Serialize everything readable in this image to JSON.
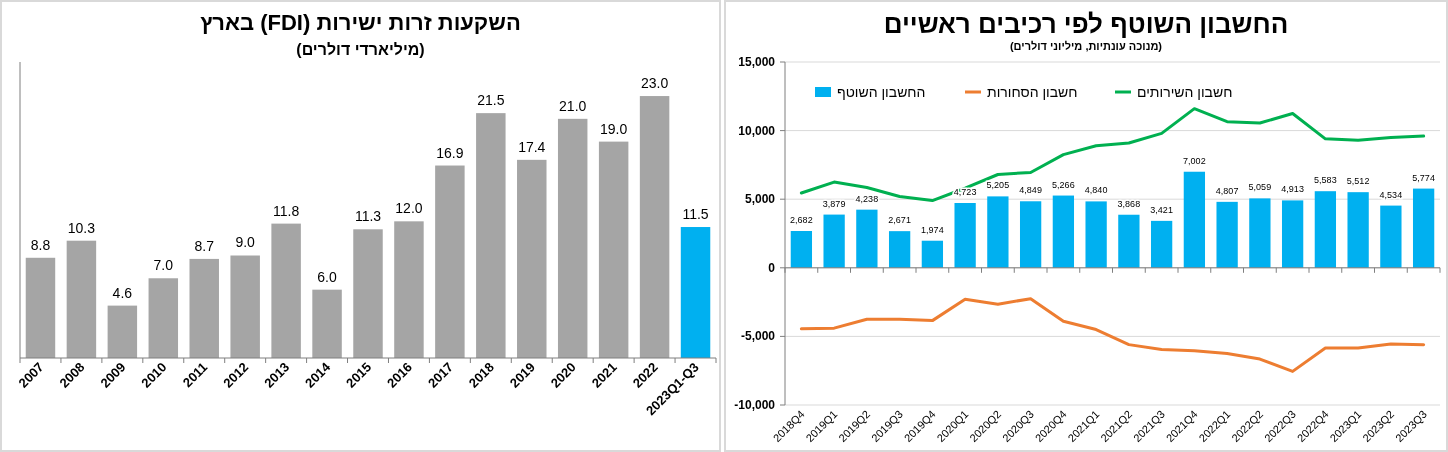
{
  "chart_data": [
    {
      "type": "bar",
      "title": "השקעות זרות ישירות (FDI) בארץ",
      "subtitle": "(מיליארדי דולרים)",
      "categories": [
        "2007",
        "2008",
        "2009",
        "2010",
        "2011",
        "2012",
        "2013",
        "2014",
        "2015",
        "2016",
        "2017",
        "2018",
        "2019",
        "2020",
        "2021",
        "2022",
        "2023Q1-Q3"
      ],
      "values": [
        8.8,
        10.3,
        4.6,
        7.0,
        8.7,
        9.0,
        11.8,
        6.0,
        11.3,
        12.0,
        16.9,
        21.5,
        17.4,
        21.0,
        19.0,
        23.0,
        11.5
      ],
      "value_labels": [
        "8.8",
        "10.3",
        "4.6",
        "7.0",
        "8.7",
        "9.0",
        "11.8",
        "6.0",
        "11.3",
        "12.0",
        "16.9",
        "21.5",
        "17.4",
        "21.0",
        "19.0",
        "23.0",
        "11.5"
      ],
      "colors": [
        "#a5a5a5",
        "#a5a5a5",
        "#a5a5a5",
        "#a5a5a5",
        "#a5a5a5",
        "#a5a5a5",
        "#a5a5a5",
        "#a5a5a5",
        "#a5a5a5",
        "#a5a5a5",
        "#a5a5a5",
        "#a5a5a5",
        "#a5a5a5",
        "#a5a5a5",
        "#a5a5a5",
        "#a5a5a5",
        "#00b0f0"
      ],
      "legend": false
    },
    {
      "type": "bar",
      "title": "החשבון השוטף לפי רכיבים ראשיים",
      "subtitle": "(מנוכה עונתיות, מיליוני דולרים)",
      "categories": [
        "2018Q4",
        "2019Q1",
        "2019Q2",
        "2019Q3",
        "2019Q4",
        "2020Q1",
        "2020Q2",
        "2020Q3",
        "2020Q4",
        "2021Q1",
        "2021Q2",
        "2021Q3",
        "2021Q4",
        "2022Q1",
        "2022Q2",
        "2022Q3",
        "2022Q4",
        "2023Q1",
        "2023Q2",
        "2023Q3"
      ],
      "series": [
        {
          "name": "החשבון השוטף",
          "color": "#00b0f0",
          "values": [
            2682,
            3879,
            4238,
            2671,
            1974,
            4723,
            5205,
            4849,
            5266,
            4840,
            3868,
            3421,
            7002,
            4807,
            5059,
            4913,
            5583,
            5512,
            4534,
            5774
          ],
          "value_labels": [
            "2,682",
            "3,879",
            "4,238",
            "2,671",
            "1,974",
            "4,723",
            "5,205",
            "4,849",
            "5,266",
            "4,840",
            "3,868",
            "3,421",
            "7,002",
            "4,807",
            "5,059",
            "4,913",
            "5,583",
            "5,512",
            "4,534",
            "5,774"
          ]
        },
        {
          "name": "חשבון הסחורות",
          "type": "line",
          "color": "#ed7d31",
          "values": [
            -4450,
            -4400,
            -3750,
            -3750,
            -3850,
            -2300,
            -2650,
            -2250,
            -3900,
            -4500,
            -5600,
            -5950,
            -6050,
            -6250,
            -6650,
            -7550,
            -5850,
            -5850,
            -5550,
            -5600
          ]
        },
        {
          "name": "חשבון השירותים",
          "type": "line",
          "color": "#00b050",
          "values": [
            5450,
            6250,
            5850,
            5200,
            4900,
            5800,
            6800,
            6950,
            8250,
            8900,
            9100,
            9800,
            11600,
            10650,
            10550,
            11250,
            9400,
            9300,
            9500,
            9600
          ]
        }
      ],
      "ylim": [
        -10000,
        15000
      ],
      "yticks": [
        {
          "value": -10000,
          "label": "-10,000"
        },
        {
          "value": -5000,
          "label": "-5,000"
        },
        {
          "value": 0,
          "label": "0"
        },
        {
          "value": 5000,
          "label": "5,000"
        },
        {
          "value": 10000,
          "label": "10,000"
        },
        {
          "value": 15000,
          "label": "15,000"
        }
      ],
      "grid": "y",
      "legend": "top",
      "marker": "none",
      "line_style": "solid"
    }
  ]
}
